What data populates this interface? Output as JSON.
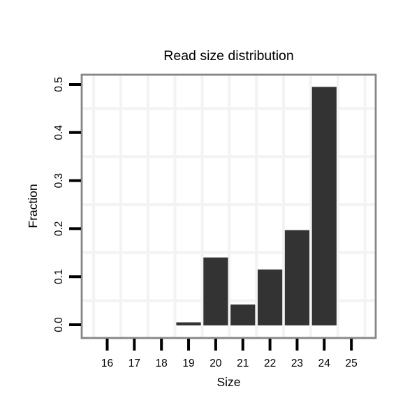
{
  "chart_data": {
    "type": "bar",
    "title": "Read size distribution",
    "xlabel": "Size",
    "ylabel": "Fraction",
    "categories": [
      "16",
      "17",
      "18",
      "19",
      "20",
      "21",
      "22",
      "23",
      "24",
      "25"
    ],
    "values": [
      0,
      0,
      0,
      0.005,
      0.14,
      0.042,
      0.115,
      0.197,
      0.495,
      0
    ],
    "ylim": [
      0,
      0.5
    ],
    "ytick_labels": [
      "0.0",
      "0.1",
      "0.2",
      "0.3",
      "0.4",
      "0.5"
    ],
    "grid": "light minor gridlines at half-step positions only, white panel background",
    "legend": "none"
  },
  "colors": {
    "background": "#ffffff",
    "bar": "#333333",
    "panel_border": "#868686",
    "grid": "#f3f3f3",
    "tick": "#000000",
    "text": "#000000"
  }
}
